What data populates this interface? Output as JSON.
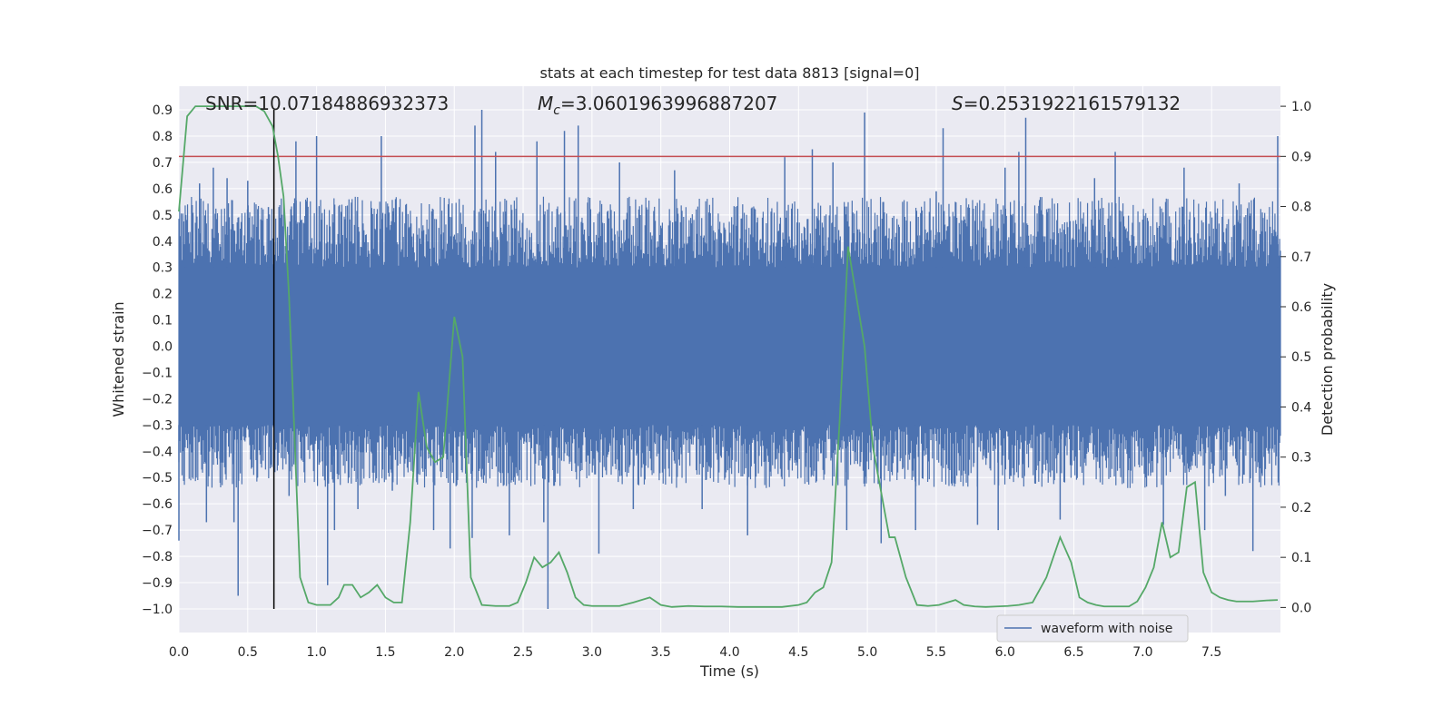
{
  "chart_data": {
    "type": "line",
    "title": "stats at each timestep for test data 8813 [signal=0]",
    "xlabel": "Time (s)",
    "ylabel_left": "Whitened strain",
    "ylabel_right": "Detection probability",
    "xlim": [
      0.0,
      8.0
    ],
    "ylim_left": [
      -1.09,
      0.99
    ],
    "ylim_right": [
      -0.05,
      1.04
    ],
    "x_ticks": [
      0.0,
      0.5,
      1.0,
      1.5,
      2.0,
      2.5,
      3.0,
      3.5,
      4.0,
      4.5,
      5.0,
      5.5,
      6.0,
      6.5,
      7.0,
      7.5
    ],
    "x_tick_labels": [
      "0.0",
      "0.5",
      "1.0",
      "1.5",
      "2.0",
      "2.5",
      "3.0",
      "3.5",
      "4.0",
      "4.5",
      "5.0",
      "5.5",
      "6.0",
      "6.5",
      "7.0",
      "7.5"
    ],
    "y_left_ticks": [
      0.9,
      0.8,
      0.7,
      0.6,
      0.5,
      0.4,
      0.3,
      0.2,
      0.1,
      0.0,
      -0.1,
      -0.2,
      -0.3,
      -0.4,
      -0.5,
      -0.6,
      -0.7,
      -0.8,
      -0.9,
      -1.0
    ],
    "y_left_tick_labels": [
      "0.9",
      "0.8",
      "0.7",
      "0.6",
      "0.5",
      "0.4",
      "0.3",
      "0.2",
      "0.1",
      "0.0",
      "−0.1",
      "−0.2",
      "−0.3",
      "−0.4",
      "−0.5",
      "−0.6",
      "−0.7",
      "−0.8",
      "−0.9",
      "−1.0"
    ],
    "y_right_ticks": [
      1.0,
      0.9,
      0.8,
      0.7,
      0.6,
      0.5,
      0.4,
      0.3,
      0.2,
      0.1,
      0.0
    ],
    "y_right_tick_labels": [
      "1.0",
      "0.9",
      "0.8",
      "0.7",
      "0.6",
      "0.5",
      "0.4",
      "0.3",
      "0.2",
      "0.1",
      "0.0"
    ],
    "grid": true,
    "annotations": {
      "snr": "SNR=10.07184886932373",
      "mc_symbol": "M",
      "mc_sub": "c",
      "mc_value": "=3.0601963996887207",
      "s_symbol": "S",
      "s_value": "=0.2531922161579132"
    },
    "threshold_right": 0.9,
    "vline_x": 0.69,
    "waveform_band": {
      "upper_typical": 0.45,
      "lower_typical": -0.42,
      "core": 0.3
    },
    "waveform_spikes": [
      {
        "x": 0.0,
        "y": -0.74
      },
      {
        "x": 0.05,
        "y": 0.5
      },
      {
        "x": 0.1,
        "y": -0.5
      },
      {
        "x": 0.15,
        "y": 0.62
      },
      {
        "x": 0.2,
        "y": -0.67
      },
      {
        "x": 0.25,
        "y": 0.68
      },
      {
        "x": 0.3,
        "y": -0.52
      },
      {
        "x": 0.35,
        "y": 0.64
      },
      {
        "x": 0.4,
        "y": -0.67
      },
      {
        "x": 0.43,
        "y": -0.95
      },
      {
        "x": 0.5,
        "y": 0.63
      },
      {
        "x": 0.6,
        "y": -0.4
      },
      {
        "x": 0.65,
        "y": 0.53
      },
      {
        "x": 0.8,
        "y": -0.57
      },
      {
        "x": 0.85,
        "y": 0.78
      },
      {
        "x": 1.0,
        "y": 0.8
      },
      {
        "x": 1.08,
        "y": -0.91
      },
      {
        "x": 1.13,
        "y": -0.7
      },
      {
        "x": 1.3,
        "y": -0.62
      },
      {
        "x": 1.47,
        "y": 0.8
      },
      {
        "x": 1.55,
        "y": -0.55
      },
      {
        "x": 1.85,
        "y": -0.7
      },
      {
        "x": 1.97,
        "y": -0.77
      },
      {
        "x": 2.13,
        "y": -0.73
      },
      {
        "x": 2.15,
        "y": 0.84
      },
      {
        "x": 2.2,
        "y": 0.9
      },
      {
        "x": 2.3,
        "y": 0.74
      },
      {
        "x": 2.4,
        "y": -0.72
      },
      {
        "x": 2.6,
        "y": 0.78
      },
      {
        "x": 2.65,
        "y": -0.67
      },
      {
        "x": 2.68,
        "y": -1.0
      },
      {
        "x": 2.8,
        "y": 0.82
      },
      {
        "x": 2.9,
        "y": 0.84
      },
      {
        "x": 3.05,
        "y": -0.79
      },
      {
        "x": 3.2,
        "y": 0.7
      },
      {
        "x": 3.3,
        "y": -0.62
      },
      {
        "x": 3.6,
        "y": 0.67
      },
      {
        "x": 3.8,
        "y": -0.62
      },
      {
        "x": 4.13,
        "y": -0.72
      },
      {
        "x": 4.4,
        "y": 0.72
      },
      {
        "x": 4.6,
        "y": 0.75
      },
      {
        "x": 4.75,
        "y": 0.7
      },
      {
        "x": 4.85,
        "y": -0.7
      },
      {
        "x": 4.98,
        "y": 0.89
      },
      {
        "x": 5.1,
        "y": -0.75
      },
      {
        "x": 5.35,
        "y": -0.7
      },
      {
        "x": 5.5,
        "y": 0.59
      },
      {
        "x": 5.55,
        "y": 0.83
      },
      {
        "x": 5.8,
        "y": -0.68
      },
      {
        "x": 5.95,
        "y": -0.7
      },
      {
        "x": 6.0,
        "y": 0.68
      },
      {
        "x": 6.1,
        "y": 0.74
      },
      {
        "x": 6.15,
        "y": 0.87
      },
      {
        "x": 6.4,
        "y": -0.66
      },
      {
        "x": 6.65,
        "y": 0.64
      },
      {
        "x": 6.8,
        "y": 0.74
      },
      {
        "x": 7.15,
        "y": -0.68
      },
      {
        "x": 7.3,
        "y": 0.68
      },
      {
        "x": 7.45,
        "y": -0.7
      },
      {
        "x": 7.6,
        "y": -0.57
      },
      {
        "x": 7.7,
        "y": 0.62
      },
      {
        "x": 7.8,
        "y": -0.78
      },
      {
        "x": 7.98,
        "y": 0.8
      }
    ],
    "series": [
      {
        "name": "waveform with noise",
        "color": "#4c72b0"
      },
      {
        "color": "#55a868",
        "axis": "right",
        "x": [
          0.0,
          0.06,
          0.12,
          0.2,
          0.3,
          0.4,
          0.5,
          0.56,
          0.62,
          0.68,
          0.72,
          0.76,
          0.8,
          0.88,
          0.94,
          1.0,
          1.1,
          1.16,
          1.2,
          1.26,
          1.32,
          1.38,
          1.44,
          1.5,
          1.56,
          1.62,
          1.68,
          1.74,
          1.8,
          1.86,
          1.92,
          2.0,
          2.06,
          2.12,
          2.2,
          2.3,
          2.4,
          2.46,
          2.52,
          2.58,
          2.64,
          2.7,
          2.76,
          2.82,
          2.88,
          2.94,
          3.0,
          3.1,
          3.2,
          3.3,
          3.42,
          3.5,
          3.58,
          3.7,
          3.82,
          3.94,
          4.06,
          4.2,
          4.38,
          4.5,
          4.56,
          4.62,
          4.68,
          4.74,
          4.8,
          4.86,
          4.92,
          4.98,
          5.04,
          5.1,
          5.16,
          5.2,
          5.28,
          5.36,
          5.44,
          5.52,
          5.58,
          5.64,
          5.7,
          5.78,
          5.86,
          5.94,
          6.02,
          6.1,
          6.2,
          6.3,
          6.4,
          6.48,
          6.54,
          6.6,
          6.66,
          6.72,
          6.78,
          6.84,
          6.9,
          6.96,
          7.02,
          7.08,
          7.14,
          7.2,
          7.26,
          7.32,
          7.38,
          7.44,
          7.5,
          7.56,
          7.62,
          7.68,
          7.74,
          7.8,
          7.9,
          7.98
        ],
        "values": [
          0.79,
          0.98,
          1.0,
          1.0,
          1.0,
          1.0,
          1.0,
          1.0,
          0.99,
          0.96,
          0.9,
          0.82,
          0.62,
          0.06,
          0.01,
          0.005,
          0.005,
          0.02,
          0.045,
          0.045,
          0.02,
          0.03,
          0.045,
          0.02,
          0.01,
          0.01,
          0.17,
          0.43,
          0.32,
          0.29,
          0.3,
          0.58,
          0.5,
          0.06,
          0.005,
          0.003,
          0.003,
          0.01,
          0.05,
          0.1,
          0.08,
          0.09,
          0.11,
          0.07,
          0.02,
          0.005,
          0.003,
          0.003,
          0.003,
          0.01,
          0.02,
          0.005,
          0.001,
          0.003,
          0.002,
          0.002,
          0.001,
          0.001,
          0.001,
          0.005,
          0.01,
          0.03,
          0.04,
          0.09,
          0.38,
          0.72,
          0.62,
          0.52,
          0.32,
          0.23,
          0.14,
          0.14,
          0.06,
          0.005,
          0.003,
          0.005,
          0.01,
          0.015,
          0.005,
          0.002,
          0.001,
          0.002,
          0.003,
          0.005,
          0.01,
          0.06,
          0.14,
          0.09,
          0.02,
          0.01,
          0.005,
          0.002,
          0.002,
          0.002,
          0.002,
          0.012,
          0.04,
          0.08,
          0.17,
          0.1,
          0.11,
          0.24,
          0.25,
          0.07,
          0.03,
          0.02,
          0.015,
          0.012,
          0.012,
          0.012,
          0.014,
          0.015
        ]
      }
    ],
    "legend": {
      "placement": "lower-right",
      "entries": [
        "waveform with noise"
      ]
    }
  }
}
